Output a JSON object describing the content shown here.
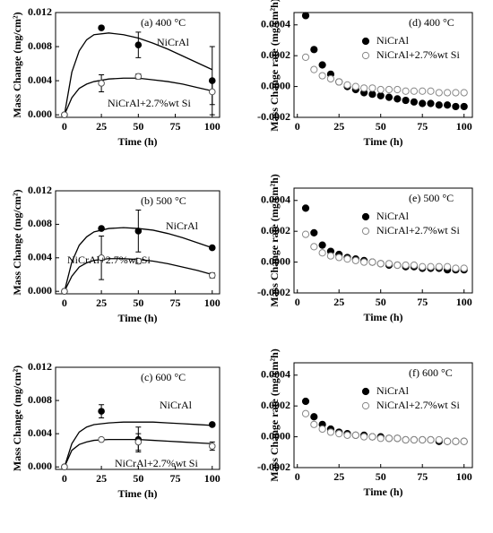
{
  "chart_data": [
    {
      "type": "scatter",
      "title": "(a) 400 °C",
      "xlabel": "Time (h)",
      "ylabel": "Mass Change (mg/cm²)",
      "xlim": [
        -6,
        105
      ],
      "ylim": [
        -0.0003,
        0.012
      ],
      "xticks": [
        0,
        25,
        50,
        75,
        100
      ],
      "yticks": [
        {
          "value": 0,
          "label": "0.000"
        },
        {
          "value": 0.004,
          "label": "0.004"
        },
        {
          "value": 0.008,
          "label": "0.008"
        },
        {
          "value": 0.012,
          "label": "0.012"
        }
      ],
      "x": [
        0,
        25,
        50,
        100
      ],
      "curve_x": [
        0,
        5,
        10,
        15,
        20,
        30,
        40,
        50,
        60,
        70,
        80,
        90,
        100
      ],
      "series": [
        {
          "name": "NiCrAl",
          "color": "#000000",
          "marker": "filled",
          "values": [
            0,
            0.0102,
            0.0082,
            0.004
          ],
          "errors": [
            0,
            0.0002,
            0.0015,
            0.004
          ],
          "curve": [
            0,
            0.005,
            0.0075,
            0.0088,
            0.0094,
            0.0096,
            0.0094,
            0.009,
            0.0084,
            0.0077,
            0.0069,
            0.0061,
            0.0053
          ]
        },
        {
          "name": "NiCrAl+2.7%wt Si",
          "color": "#555555",
          "marker": "open",
          "values": [
            0,
            0.0037,
            0.0045,
            0.0027
          ],
          "errors": [
            0,
            0.001,
            0.0003,
            0.0015
          ],
          "curve": [
            0,
            0.002,
            0.0031,
            0.0036,
            0.0039,
            0.0042,
            0.0043,
            0.0043,
            0.0041,
            0.0039,
            0.0036,
            0.0032,
            0.0028
          ]
        }
      ]
    },
    {
      "type": "scatter",
      "title": "(b) 500 °C",
      "xlabel": "Time (h)",
      "ylabel": "Mass Change (mg/cm²)",
      "xlim": [
        -6,
        105
      ],
      "ylim": [
        -0.0003,
        0.012
      ],
      "xticks": [
        0,
        25,
        50,
        75,
        100
      ],
      "yticks": [
        {
          "value": 0,
          "label": "0.000"
        },
        {
          "value": 0.004,
          "label": "0.004"
        },
        {
          "value": 0.008,
          "label": "0.008"
        },
        {
          "value": 0.012,
          "label": "0.012"
        }
      ],
      "x": [
        0,
        25,
        50,
        100
      ],
      "curve_x": [
        0,
        5,
        10,
        15,
        20,
        30,
        40,
        50,
        60,
        70,
        80,
        90,
        100
      ],
      "series": [
        {
          "name": "NiCrAl",
          "color": "#000000",
          "marker": "filled",
          "values": [
            0,
            0.0075,
            0.0072,
            0.0052
          ],
          "errors": [
            0,
            0.0002,
            0.0025,
            0.0002
          ],
          "curve": [
            0,
            0.0035,
            0.0055,
            0.0065,
            0.0071,
            0.0075,
            0.0076,
            0.0075,
            0.0073,
            0.0069,
            0.0064,
            0.0058,
            0.0052
          ]
        },
        {
          "name": "NiCrAl+2.7%wt Si",
          "color": "#555555",
          "marker": "open",
          "values": [
            0,
            0.004,
            0.0036,
            0.0019
          ],
          "errors": [
            0,
            0.0026,
            0.0003,
            0.0003
          ],
          "curve": [
            0,
            0.0018,
            0.0029,
            0.0034,
            0.0037,
            0.0039,
            0.0039,
            0.0038,
            0.0036,
            0.0033,
            0.0029,
            0.0025,
            0.002
          ]
        }
      ]
    },
    {
      "type": "scatter",
      "title": "(c) 600 °C",
      "xlabel": "Time (h)",
      "ylabel": "Mass Change (mg/cm²)",
      "xlim": [
        -6,
        105
      ],
      "ylim": [
        -0.0003,
        0.012
      ],
      "xticks": [
        0,
        25,
        50,
        75,
        100
      ],
      "yticks": [
        {
          "value": 0,
          "label": "0.000"
        },
        {
          "value": 0.004,
          "label": "0.004"
        },
        {
          "value": 0.008,
          "label": "0.008"
        },
        {
          "value": 0.012,
          "label": "0.012"
        }
      ],
      "x": [
        0,
        25,
        50,
        100
      ],
      "curve_x": [
        0,
        5,
        10,
        15,
        20,
        30,
        40,
        50,
        60,
        70,
        80,
        90,
        100
      ],
      "series": [
        {
          "name": "NiCrAl",
          "color": "#000000",
          "marker": "filled",
          "values": [
            0,
            0.0067,
            0.0033,
            0.0051
          ],
          "errors": [
            0,
            0.0008,
            0.0015,
            0.0002
          ],
          "curve": [
            0,
            0.0028,
            0.0042,
            0.0048,
            0.0051,
            0.0053,
            0.0054,
            0.0054,
            0.0054,
            0.0053,
            0.0052,
            0.0051,
            0.005
          ]
        },
        {
          "name": "NiCrAl+2.7%wt Si",
          "color": "#555555",
          "marker": "open",
          "values": [
            0,
            0.0033,
            0.003,
            0.0025
          ],
          "errors": [
            0,
            0.0002,
            0.001,
            0.0005
          ],
          "curve": [
            0,
            0.002,
            0.0027,
            0.003,
            0.0032,
            0.0033,
            0.0033,
            0.0033,
            0.0032,
            0.0031,
            0.003,
            0.0029,
            0.0028
          ]
        }
      ]
    },
    {
      "type": "scatter",
      "title": "(d) 400 °C",
      "xlabel": "Time (h)",
      "ylabel": "Mass Change rate (mg/cm²h)",
      "legend": "top-right",
      "xlim": [
        -2,
        105
      ],
      "ylim": [
        -0.0002,
        0.00048
      ],
      "xticks": [
        0,
        25,
        50,
        75,
        100
      ],
      "yticks": [
        {
          "value": -0.0002,
          "label": "-0.0002"
        },
        {
          "value": 0,
          "label": "0.0000"
        },
        {
          "value": 0.0002,
          "label": "0.0002"
        },
        {
          "value": 0.0004,
          "label": "0.0004"
        }
      ],
      "x": [
        5,
        10,
        15,
        20,
        25,
        30,
        35,
        40,
        45,
        50,
        55,
        60,
        65,
        70,
        75,
        80,
        85,
        90,
        95,
        100
      ],
      "series": [
        {
          "name": "NiCrAl",
          "color": "#000000",
          "marker": "filled",
          "values": [
            0.00046,
            0.00024,
            0.00014,
            8e-05,
            3e-05,
            0,
            -2e-05,
            -4e-05,
            -5e-05,
            -6e-05,
            -7e-05,
            -8e-05,
            -9e-05,
            -0.0001,
            -0.00011,
            -0.00011,
            -0.00012,
            -0.00012,
            -0.00013,
            -0.00013
          ]
        },
        {
          "name": "NiCrAl+2.7%wt Si",
          "color": "#888888",
          "marker": "open",
          "values": [
            0.00019,
            0.00011,
            7e-05,
            5e-05,
            3e-05,
            1e-05,
            0,
            -1e-05,
            -1e-05,
            -2e-05,
            -2e-05,
            -2e-05,
            -3e-05,
            -3e-05,
            -3e-05,
            -3e-05,
            -4e-05,
            -4e-05,
            -4e-05,
            -4e-05
          ]
        }
      ]
    },
    {
      "type": "scatter",
      "title": "(e) 500 °C",
      "xlabel": "Time (h)",
      "ylabel": "Mass Change rate (mg/cm²h)",
      "legend": "top-right",
      "xlim": [
        -2,
        105
      ],
      "ylim": [
        -0.0002,
        0.00048
      ],
      "xticks": [
        0,
        25,
        50,
        75,
        100
      ],
      "yticks": [
        {
          "value": -0.0002,
          "label": "-0.0002"
        },
        {
          "value": 0,
          "label": "0.0000"
        },
        {
          "value": 0.0002,
          "label": "0.0002"
        },
        {
          "value": 0.0004,
          "label": "0.0004"
        }
      ],
      "x": [
        5,
        10,
        15,
        20,
        25,
        30,
        35,
        40,
        45,
        50,
        55,
        60,
        65,
        70,
        75,
        80,
        85,
        90,
        95,
        100
      ],
      "series": [
        {
          "name": "NiCrAl",
          "color": "#000000",
          "marker": "filled",
          "values": [
            0.00035,
            0.00019,
            0.00011,
            7e-05,
            5e-05,
            3e-05,
            2e-05,
            1e-05,
            0,
            -1e-05,
            -2e-05,
            -2e-05,
            -3e-05,
            -3e-05,
            -4e-05,
            -4e-05,
            -4e-05,
            -5e-05,
            -5e-05,
            -5e-05
          ]
        },
        {
          "name": "NiCrAl+2.7%wt Si",
          "color": "#888888",
          "marker": "open",
          "values": [
            0.00018,
            0.0001,
            6e-05,
            4e-05,
            3e-05,
            2e-05,
            1e-05,
            0,
            0,
            -1e-05,
            -1e-05,
            -2e-05,
            -2e-05,
            -2e-05,
            -3e-05,
            -3e-05,
            -3e-05,
            -3e-05,
            -4e-05,
            -4e-05
          ]
        }
      ]
    },
    {
      "type": "scatter",
      "title": "(f) 600 °C",
      "xlabel": "Time (h)",
      "ylabel": "Mass Change rate (mg/cm²h)",
      "legend": "top-right",
      "xlim": [
        -2,
        105
      ],
      "ylim": [
        -0.0002,
        0.00048
      ],
      "xticks": [
        0,
        25,
        50,
        75,
        100
      ],
      "yticks": [
        {
          "value": -0.0002,
          "label": "-0.0002"
        },
        {
          "value": 0,
          "label": "0.0000"
        },
        {
          "value": 0.0002,
          "label": "0.0002"
        },
        {
          "value": 0.0004,
          "label": "0.0004"
        }
      ],
      "x": [
        5,
        10,
        15,
        20,
        25,
        30,
        35,
        40,
        45,
        50,
        55,
        60,
        65,
        70,
        75,
        80,
        85,
        90,
        95,
        100
      ],
      "series": [
        {
          "name": "NiCrAl",
          "color": "#000000",
          "marker": "filled",
          "values": [
            0.00023,
            0.00013,
            8e-05,
            5e-05,
            3e-05,
            2e-05,
            1e-05,
            1e-05,
            0,
            0,
            -1e-05,
            -1e-05,
            -2e-05,
            -2e-05,
            -2e-05,
            -2e-05,
            -3e-05,
            -3e-05,
            -3e-05,
            -3e-05
          ]
        },
        {
          "name": "NiCrAl+2.7%wt Si",
          "color": "#888888",
          "marker": "open",
          "values": [
            0.00015,
            8e-05,
            5e-05,
            3e-05,
            2e-05,
            1e-05,
            1e-05,
            0,
            0,
            -1e-05,
            -1e-05,
            -1e-05,
            -2e-05,
            -2e-05,
            -2e-05,
            -2e-05,
            -2e-05,
            -3e-05,
            -3e-05,
            -3e-05
          ]
        }
      ]
    }
  ]
}
